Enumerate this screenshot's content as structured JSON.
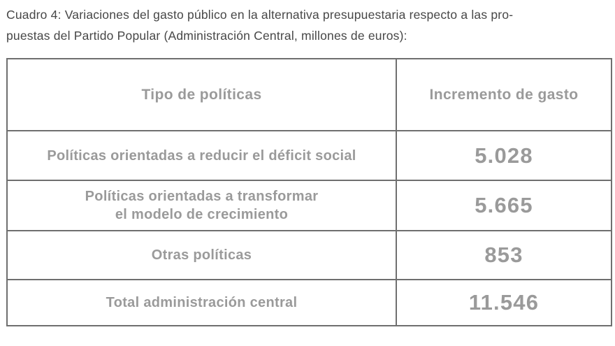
{
  "caption": {
    "line1": "Cuadro 4: Variaciones del gasto público en la alternativa presupuestaria respecto a las pro-",
    "line2": "puestas del Partido Popular (Administración Central, millones de euros):"
  },
  "table": {
    "headers": [
      "Tipo de políticas",
      "Incremento de gasto"
    ],
    "rows": [
      {
        "label": "Políticas orientadas a reducir el déficit social",
        "label_line2": "",
        "value": "5.028"
      },
      {
        "label": "Políticas orientadas a transformar",
        "label_line2": "el modelo de crecimiento",
        "value": "5.665"
      },
      {
        "label": "Otras políticas",
        "label_line2": "",
        "value": "853"
      },
      {
        "label": "Total administración central",
        "label_line2": "",
        "value": "11.546"
      }
    ]
  },
  "colors": {
    "background": "#ffffff",
    "border": "#6f6f6f",
    "cell_text": "#9a9a9a",
    "caption_text": "#474747"
  }
}
